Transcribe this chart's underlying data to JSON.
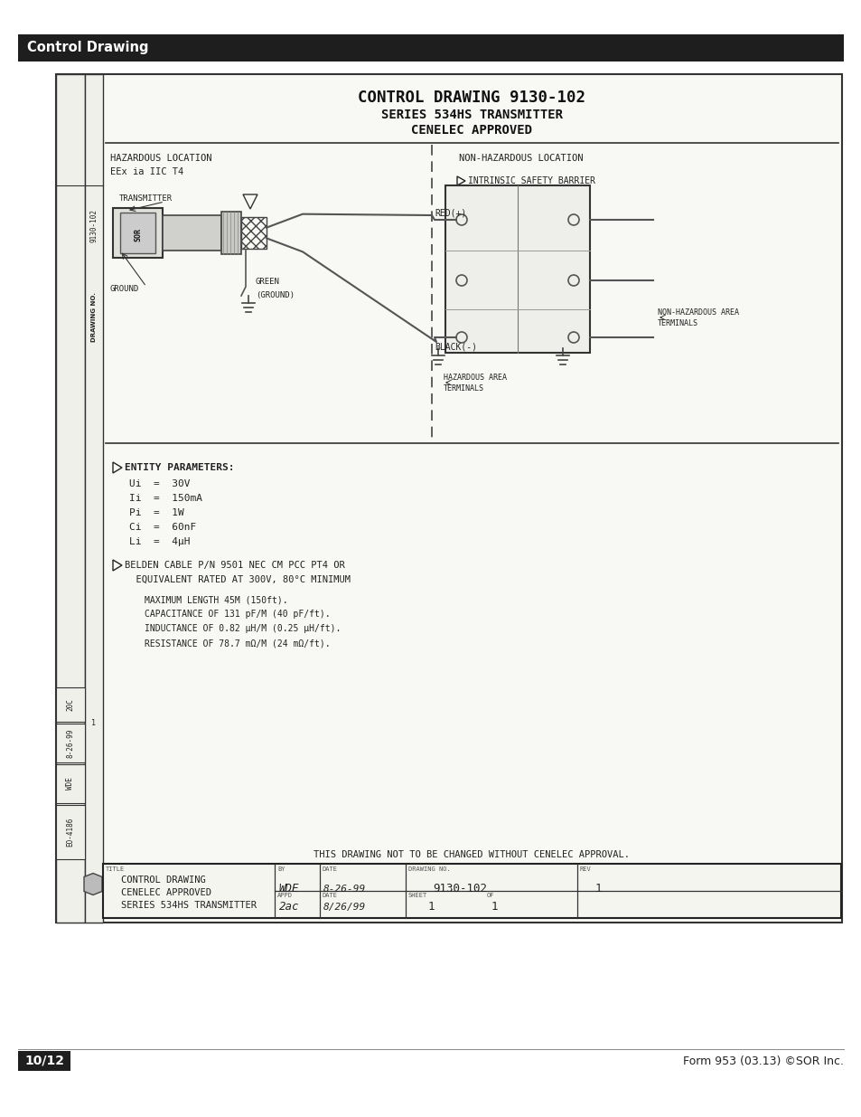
{
  "page_bg": "#ffffff",
  "header_bg": "#1e1e1e",
  "header_text": "Control Drawing",
  "doc_bg": "#f8f8f5",
  "drawing_title_line1": "CONTROL DRAWING 9130-102",
  "drawing_title_line2": "SERIES 534HS TRANSMITTER",
  "drawing_title_line3": "CENELEC APPROVED",
  "hazardous_label": "HAZARDOUS LOCATION",
  "hazardous_sub": "EEx ia IIC T4",
  "non_hazardous_label": "NON-HAZARDOUS LOCATION",
  "transmitter_label": "TRANSMITTER",
  "ground_label": "GROUND",
  "green_label": "GREEN",
  "ground_paren": "(GROUND)",
  "red_label": "RED(+)",
  "black_label": "BLACK(-)",
  "intrinsic_label": "INTRINSIC SAFETY BARRIER",
  "entity_header": "ENTITY PARAMETERS:",
  "entity_params": [
    "Ui  =  30V",
    "Ii  =  150mA",
    "Pi  =  1W",
    "Ci  =  60nF",
    "Li  =  4μH"
  ],
  "cable_line1": "BELDEN CABLE P/N 9501 NEC CM PCC PT4 OR",
  "cable_line2": "EQUIVALENT RATED AT 300V, 80°C MINIMUM",
  "cable_specs": [
    "MAXIMUM LENGTH 45M (150ft).",
    "CAPACITANCE OF 131 pF/M (40 pF/ft).",
    "INDUCTANCE OF 0.82 μH/M (0.25 μH/ft).",
    "RESISTANCE OF 78.7 mΩ/M (24 mΩ/ft)."
  ],
  "bottom_note": "THIS DRAWING NOT TO BE CHANGED WITHOUT CENELEC APPROVAL.",
  "by_val": "WDE",
  "date_val": "8-26-99",
  "drawing_no_val": "9130-102",
  "rev_val": "1",
  "appd_val": "2ac",
  "date2_val": "8/26/99",
  "sheet_val": "1",
  "of_val": "1",
  "drawing_no_side": "9130-102",
  "footer_page": "10/12",
  "footer_right": "Form 953 (03.13) ©SOR Inc.",
  "sidebar_labels": [
    "20C",
    "8-26-99",
    "WDE",
    "EO-4186"
  ]
}
